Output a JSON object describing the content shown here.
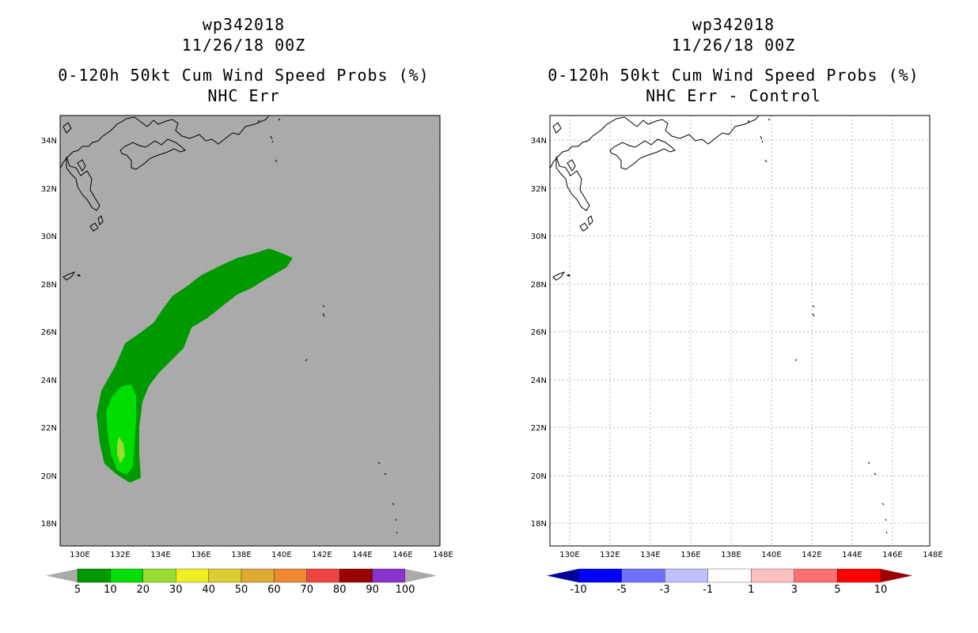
{
  "left_panel": {
    "storm_id": "wp342018",
    "date": "11/26/18 00Z",
    "product": "0-120h 50kt Cum Wind Speed Probs (%)",
    "subtitle": "NHC Err",
    "background_color": "#aaaaaa",
    "colorbar": {
      "labels": [
        "5",
        "10",
        "20",
        "30",
        "40",
        "50",
        "60",
        "70",
        "80",
        "90",
        "100"
      ],
      "colors": [
        "#009900",
        "#00dd00",
        "#99dd33",
        "#eeee22",
        "#ddcc33",
        "#ddaa33",
        "#ee8833",
        "#ee4444",
        "#990000",
        "#8833cc"
      ],
      "under_color": "#aaaaaa",
      "over_color": "#aaaaaa"
    }
  },
  "right_panel": {
    "storm_id": "wp342018",
    "date": "11/26/18 00Z",
    "product": "0-120h 50kt Cum Wind Speed Probs (%)",
    "subtitle": "NHC Err - Control",
    "background_color": "#ffffff",
    "colorbar": {
      "labels": [
        "-10",
        "-5",
        "-3",
        "-1",
        "1",
        "3",
        "5",
        "10"
      ],
      "colors": [
        "#0000ff",
        "#7070ff",
        "#c0c0ff",
        "#ffffff",
        "#ffc0c0",
        "#ff7070",
        "#ff0000"
      ],
      "under_color": "#000099",
      "over_color": "#990000"
    }
  },
  "map": {
    "lon_labels": [
      "130E",
      "132E",
      "134E",
      "136E",
      "138E",
      "140E",
      "142E",
      "144E",
      "146E",
      "148E"
    ],
    "lat_labels": [
      "34N",
      "32N",
      "30N",
      "28N",
      "26N",
      "24N",
      "22N",
      "20N",
      "18N"
    ],
    "lon_range": [
      129,
      148
    ],
    "lat_range": [
      17,
      35
    ]
  }
}
